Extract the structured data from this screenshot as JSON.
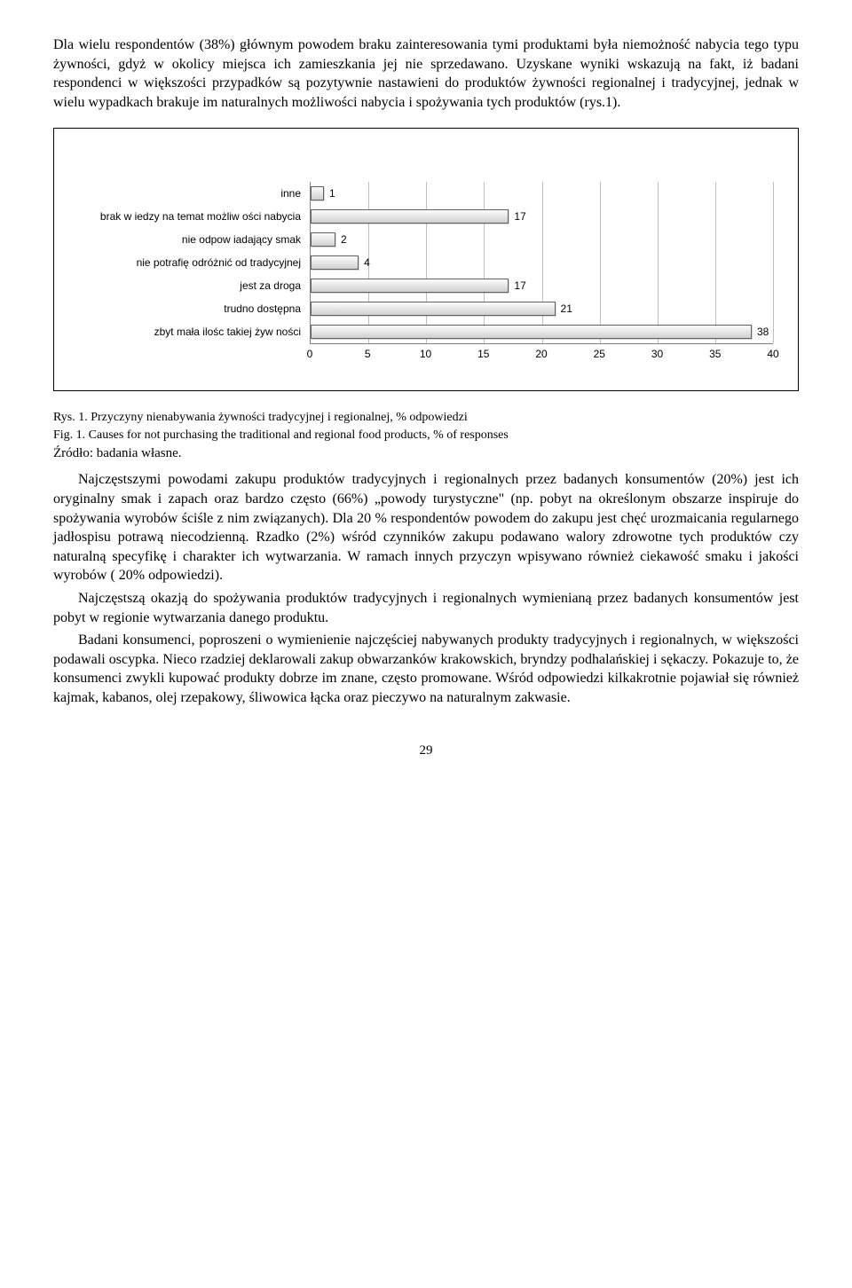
{
  "para1": "Dla wielu respondentów (38%) głównym powodem braku zainteresowania tymi produktami była niemożność nabycia tego typu żywności, gdyż w okolicy miejsca ich zamieszkania jej nie sprzedawano. Uzyskane wyniki wskazują na fakt, iż badani respondenci w większości przypadków są pozytywnie nastawieni do produktów żywności regionalnej i tradycyjnej, jednak w wielu wypadkach brakuje im naturalnych możliwości nabycia i spożywania tych produktów (rys.1).",
  "chart": {
    "type": "bar-horizontal",
    "x_min": 0,
    "x_max": 40,
    "x_step": 5,
    "bar_fill_gradient": [
      "#fdfdfd",
      "#e6e6e6",
      "#d0d0d0"
    ],
    "bar_border": "#606060",
    "grid_color": "#bfbfbf",
    "axis_color": "#808080",
    "label_font": "Arial",
    "label_fontsize": 12,
    "categories": [
      {
        "label": "inne",
        "value": 1
      },
      {
        "label": "brak w iedzy na temat możliw ości nabycia",
        "value": 17
      },
      {
        "label": "nie odpow iadający smak",
        "value": 2
      },
      {
        "label": "nie potrafię odróżnić od tradycyjnej",
        "value": 4
      },
      {
        "label": "jest za droga",
        "value": 17
      },
      {
        "label": "trudno dostępna",
        "value": 21
      },
      {
        "label": "zbyt mała ilośc takiej żyw ności",
        "value": 38
      }
    ],
    "x_ticks": [
      0,
      5,
      10,
      15,
      20,
      25,
      30,
      35,
      40
    ]
  },
  "caption_pl": "Rys. 1. Przyczyny nienabywania żywności tradycyjnej i regionalnej, % odpowiedzi",
  "caption_en": "Fig. 1. Causes for not purchasing the traditional and regional food products, % of responses",
  "source": "Źródło: badania własne.",
  "para2": "Najczęstszymi powodami zakupu produktów tradycyjnych i regionalnych przez badanych konsumentów (20%) jest ich oryginalny smak i zapach oraz bardzo często (66%) „powody turystyczne\" (np. pobyt na określonym obszarze inspiruje do spożywania wyrobów ściśle z nim związanych). Dla 20 % respondentów powodem do zakupu jest chęć urozmaicania regularnego jadłospisu potrawą niecodzienną. Rzadko (2%) wśród czynników zakupu podawano walory zdrowotne tych produktów czy naturalną specyfikę i charakter ich wytwarzania. W ramach innych przyczyn wpisywano również ciekawość smaku i jakości wyrobów ( 20% odpowiedzi).",
  "para3": "Najczęstszą okazją do spożywania produktów tradycyjnych i regionalnych wymienianą przez badanych konsumentów jest pobyt w regionie wytwarzania danego produktu.",
  "para4": "Badani konsumenci, poproszeni o wymienienie najczęściej nabywanych produkty tradycyjnych i regionalnych, w większości podawali oscypka. Nieco rzadziej deklarowali zakup obwarzanków krakowskich, bryndzy podhalańskiej i sękaczy. Pokazuje to, że konsumenci zwykli kupować produkty dobrze im znane, często promowane. Wśród odpowiedzi kilkakrotnie pojawiał się również kajmak, kabanos, olej rzepakowy, śliwowica łącka oraz pieczywo na naturalnym zakwasie.",
  "page_number": "29"
}
